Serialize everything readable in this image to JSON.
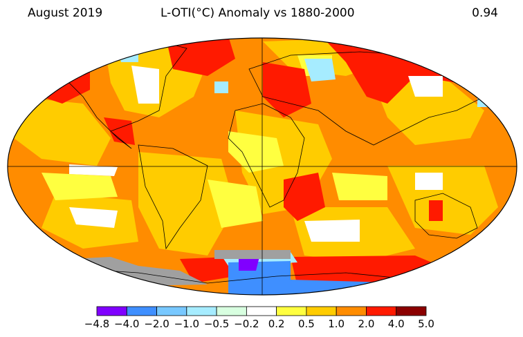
{
  "header": {
    "left": "August 2019",
    "center": "L-OTI(°C) Anomaly vs 1880-2000",
    "right": "0.94"
  },
  "legend": {
    "colors": [
      "#8000ff",
      "#3f8fff",
      "#78c8ff",
      "#a6ecff",
      "#d8ffe0",
      "#ffffff",
      "#ffff40",
      "#ffcc00",
      "#ff8c00",
      "#ff1a00",
      "#8b0000"
    ],
    "ticks": [
      "−4.8",
      "−4.0",
      "−2.0",
      "−1.0",
      "−0.5",
      "−0.2",
      "0.2",
      "0.5",
      "1.0",
      "2.0",
      "4.0",
      "5.0"
    ]
  },
  "map": {
    "palette": {
      "ocean_base": "#ff8c00",
      "mild": "#ffcc00",
      "light": "#ffff40",
      "hot": "#ff1a00",
      "neutral": "#ffffff",
      "cool": "#a6ecff",
      "cooler": "#78c8ff",
      "cold": "#3f8fff",
      "coldest": "#8000ff",
      "nodata": "#a0a0a0"
    }
  }
}
